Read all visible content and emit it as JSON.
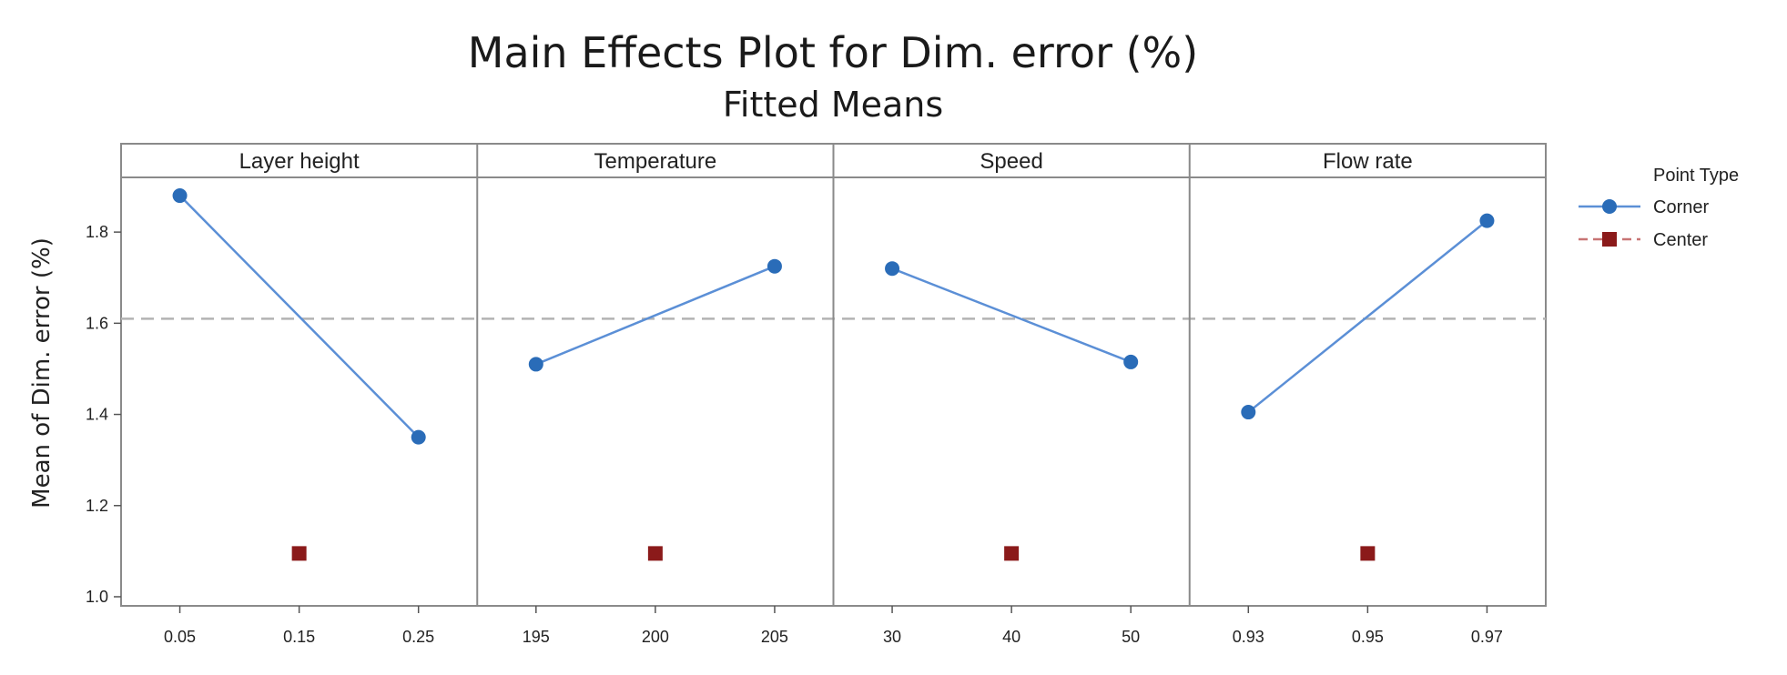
{
  "chart_data": {
    "type": "line",
    "title": "Main Effects Plot for Dim. error (%)",
    "subtitle": "Fitted Means",
    "ylabel": "Mean of Dim. error (%)",
    "ylim": [
      0.98,
      1.92
    ],
    "yticks": [
      1.0,
      1.2,
      1.4,
      1.6,
      1.8
    ],
    "ytick_labels": [
      "1.0",
      "1.2",
      "1.4",
      "1.6",
      "1.8"
    ],
    "overall_mean": 1.61,
    "grid": false,
    "legend": {
      "title": "Point Type",
      "placement": "right",
      "entries": [
        {
          "label": "Corner",
          "color": "#2a6cb8",
          "marker": "circle",
          "line": "solid",
          "line_color": "#5b8fd6"
        },
        {
          "label": "Center",
          "color": "#8b1a1a",
          "marker": "square",
          "line": "dashed",
          "line_color": "#c87474"
        }
      ]
    },
    "facets": [
      {
        "label": "Layer height",
        "tick_labels": [
          "0.05",
          "0.15",
          "0.25"
        ],
        "levels": [
          0.05,
          0.15,
          0.25
        ],
        "corner": [
          1.88,
          1.35
        ],
        "center": 1.095
      },
      {
        "label": "Temperature",
        "tick_labels": [
          "195",
          "200",
          "205"
        ],
        "levels": [
          195,
          200,
          205
        ],
        "corner": [
          1.51,
          1.725
        ],
        "center": 1.095
      },
      {
        "label": "Speed",
        "tick_labels": [
          "30",
          "40",
          "50"
        ],
        "levels": [
          30,
          40,
          50
        ],
        "corner": [
          1.72,
          1.515
        ],
        "center": 1.095
      },
      {
        "label": "Flow rate",
        "tick_labels": [
          "0.93",
          "0.95",
          "0.97"
        ],
        "levels": [
          0.93,
          0.95,
          0.97
        ],
        "corner": [
          1.405,
          1.825
        ],
        "center": 1.095
      }
    ]
  }
}
